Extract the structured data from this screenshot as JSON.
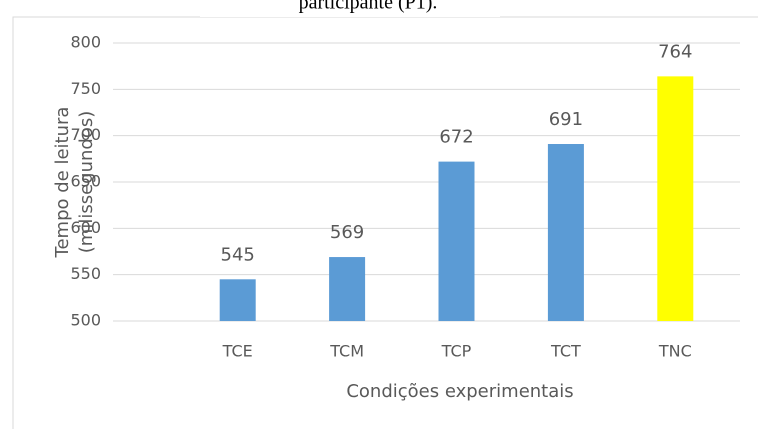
{
  "chart_data": {
    "type": "bar",
    "title": "participante (P1).",
    "categories": [
      "TCE",
      "TCM",
      "TCP",
      "TCT",
      "TNC"
    ],
    "values": [
      545,
      569,
      672,
      691,
      764
    ],
    "colors": [
      "#5b9bd5",
      "#5b9bd5",
      "#5b9bd5",
      "#5b9bd5",
      "#ffff00"
    ],
    "ylim": [
      500,
      800
    ],
    "yticks": [
      500,
      550,
      600,
      650,
      700,
      750,
      800
    ],
    "grid": true,
    "ylabel": [
      "Tempo de leitura",
      "(milissegundos)"
    ],
    "xlabel": "Condições experimentais"
  }
}
